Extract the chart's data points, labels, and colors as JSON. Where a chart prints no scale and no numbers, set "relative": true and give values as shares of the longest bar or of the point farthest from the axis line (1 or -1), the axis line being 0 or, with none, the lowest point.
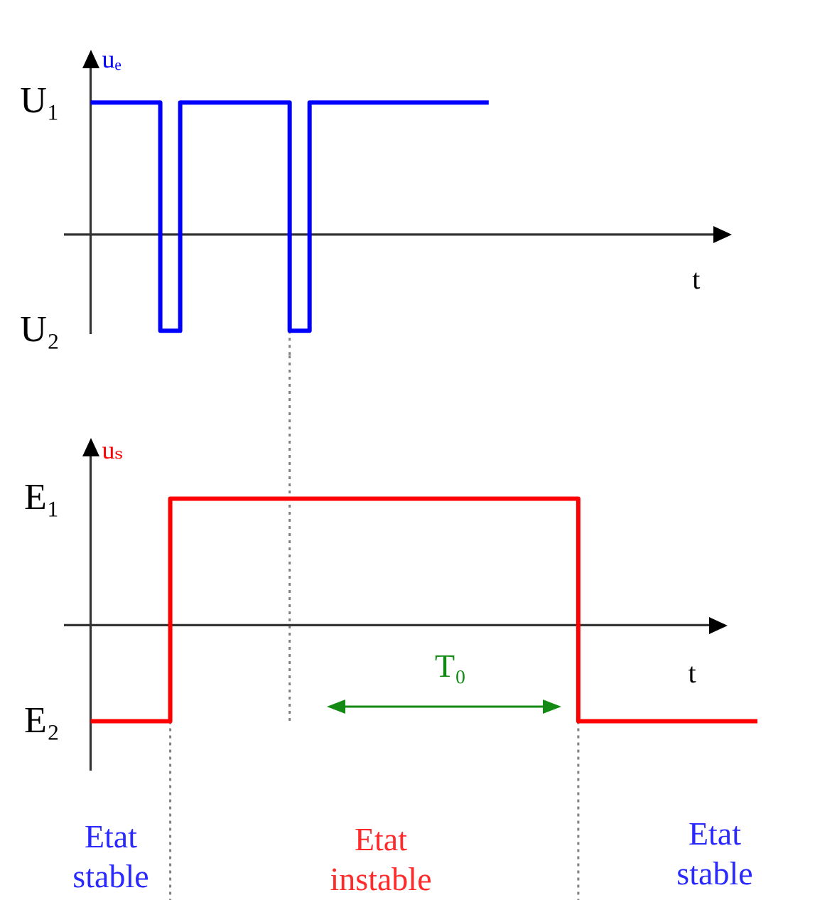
{
  "chart_data": [
    {
      "type": "step",
      "relative": true,
      "ylabel": "uₑ",
      "xlabel": "t",
      "marker": "none",
      "categories": [
        null,
        null,
        null,
        null,
        null,
        null,
        null,
        null,
        null,
        null,
        null,
        null,
        null,
        null,
        null,
        null,
        null,
        null,
        null,
        null,
        null,
        null,
        null,
        null,
        null,
        null,
        null,
        null,
        null,
        null,
        null,
        null,
        null,
        null,
        null,
        null,
        null,
        null,
        null,
        null,
        null,
        null,
        null,
        null,
        null,
        null,
        null,
        null,
        null,
        null,
        null,
        null,
        null,
        null,
        null,
        null,
        null,
        null,
        null,
        null,
        null,
        null,
        null,
        null,
        null,
        null,
        null,
        null
      ],
      "color": "#0000ff",
      "values": [
        1,
        1,
        1,
        1,
        1,
        1,
        1,
        -0.73,
        -0.73,
        1,
        1,
        1,
        1,
        1,
        1,
        1,
        1,
        1,
        1,
        1,
        -0.73,
        -0.73,
        1,
        1,
        1,
        1,
        1,
        1,
        1,
        1,
        1,
        1,
        1,
        1,
        1,
        1,
        1,
        1,
        1,
        1,
        1,
        null,
        null,
        null,
        null,
        null,
        null,
        null,
        null,
        null,
        null,
        null,
        null,
        null,
        null,
        null,
        null,
        null,
        null,
        null,
        null,
        null,
        null,
        null,
        null,
        null,
        null,
        null
      ],
      "annotations": [
        "U₁",
        "U₂"
      ]
    },
    {
      "type": "step",
      "relative": true,
      "ylabel": "uₛ",
      "xlabel": "t",
      "marker": "none",
      "categories": [
        null,
        null,
        null,
        null,
        null,
        null,
        null,
        null,
        null,
        null,
        null,
        null,
        null,
        null,
        null,
        null,
        null,
        null,
        null,
        null,
        null,
        null,
        null,
        null,
        null,
        null,
        null,
        null,
        null,
        null,
        null,
        null,
        null,
        null,
        null,
        null,
        null,
        null,
        null,
        null,
        null,
        null,
        null,
        null,
        null,
        null,
        null,
        null,
        null,
        null,
        null,
        null,
        null,
        null,
        null,
        null,
        null,
        null,
        null,
        null,
        null,
        null,
        null,
        null,
        null,
        null,
        null,
        null
      ],
      "color": "#ff0000",
      "values": [
        -0.76,
        -0.76,
        -0.76,
        -0.76,
        -0.76,
        -0.76,
        -0.76,
        -0.76,
        1,
        1,
        1,
        1,
        1,
        1,
        1,
        1,
        1,
        1,
        1,
        1,
        1,
        1,
        1,
        1,
        1,
        1,
        1,
        1,
        1,
        1,
        1,
        1,
        1,
        1,
        1,
        1,
        1,
        1,
        1,
        1,
        1,
        1,
        1,
        1,
        1,
        1,
        1,
        1,
        1,
        -0.76,
        -0.76,
        -0.76,
        -0.76,
        -0.76,
        -0.76,
        -0.76,
        -0.76,
        -0.76,
        -0.76,
        -0.76,
        -0.76,
        -0.76,
        -0.76,
        -0.76,
        -0.76,
        -0.76,
        -0.76,
        -0.76
      ],
      "annotations": [
        "E₁",
        "E₂",
        "T₀",
        "Etat stable",
        "Etat instable",
        "Etat stable"
      ]
    }
  ]
}
